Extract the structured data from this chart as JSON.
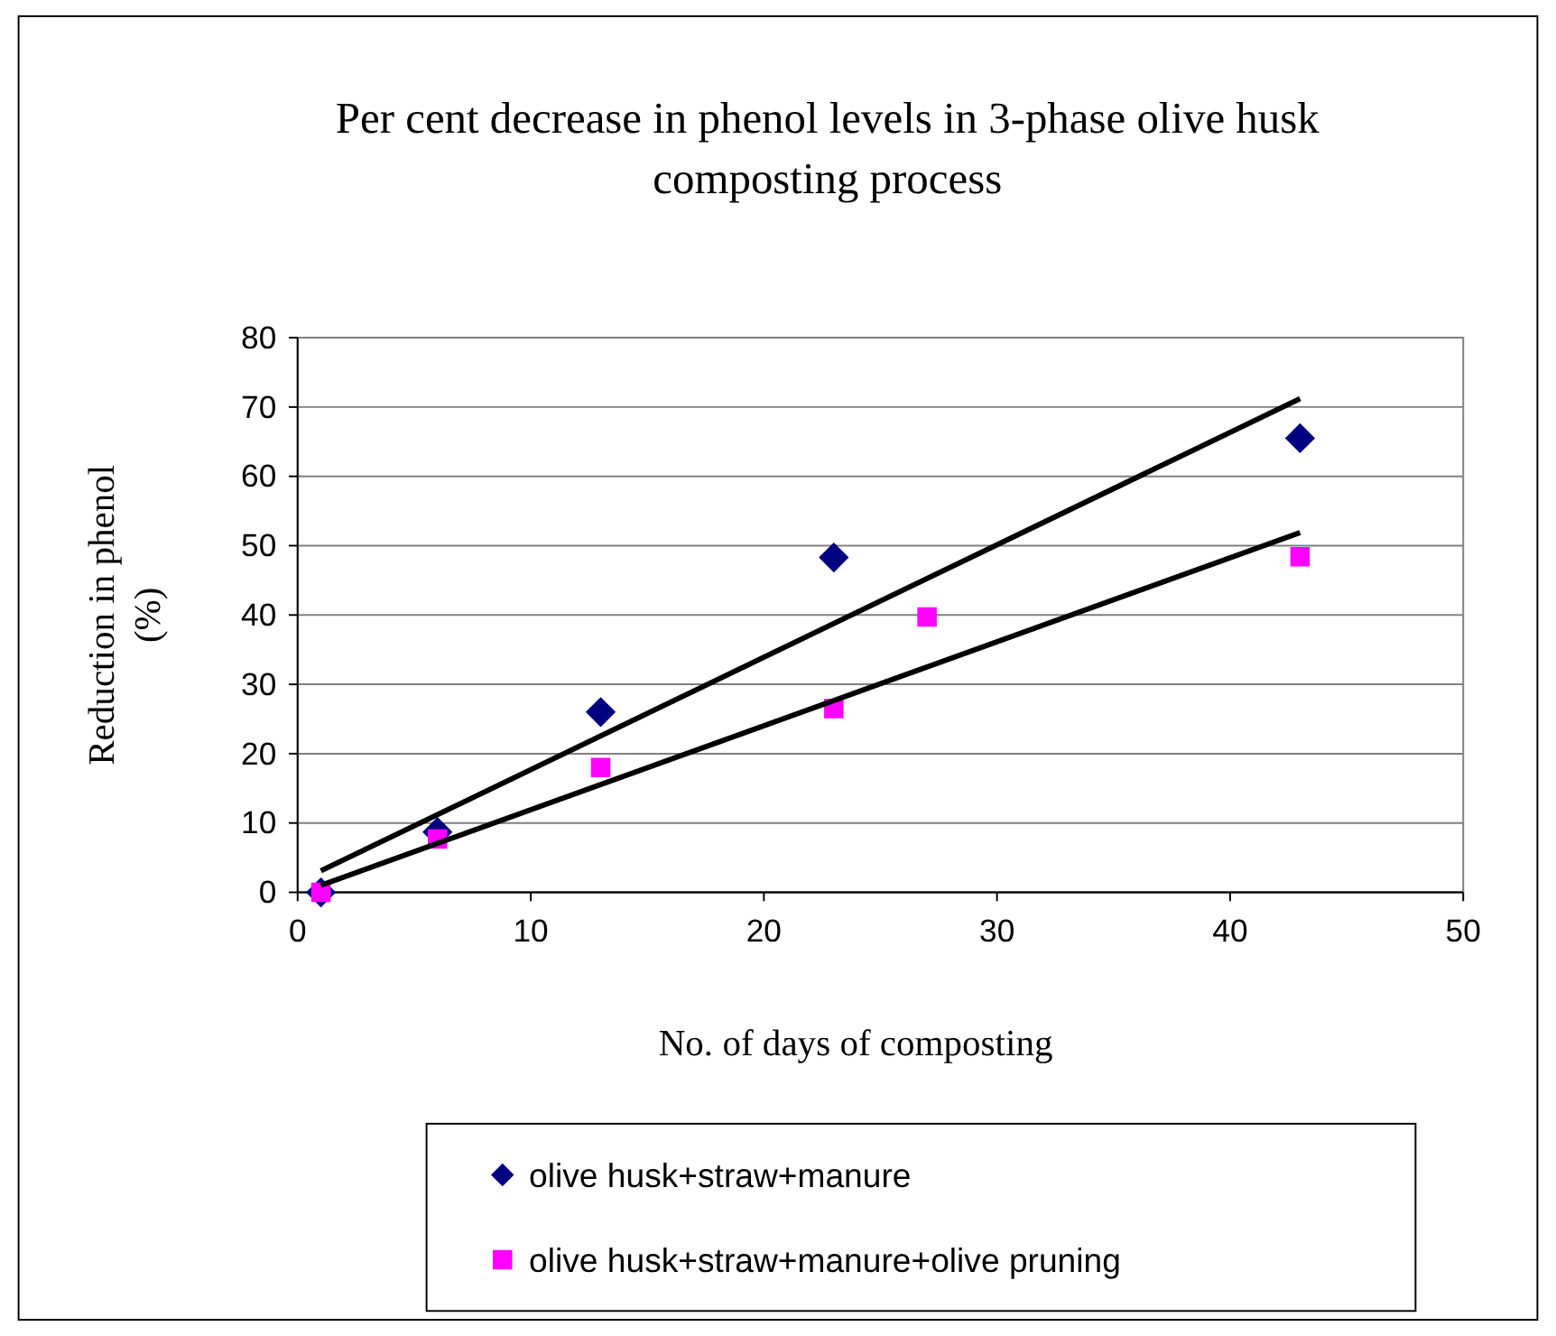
{
  "chart_data": {
    "type": "scatter",
    "title": "Per cent decrease in phenol levels in 3-phase olive husk composting process",
    "xlabel": "No. of days of composting",
    "ylabel": "Reduction in phenol (%)",
    "xlim": [
      0,
      50
    ],
    "xticks": [
      0,
      10,
      20,
      30,
      40,
      50
    ],
    "ylim": [
      0,
      80
    ],
    "yticks": [
      0,
      10,
      20,
      30,
      40,
      50,
      60,
      70,
      80
    ],
    "grid": "y",
    "legend": "bottom",
    "series": [
      {
        "name": "olive husk+straw+manure",
        "color": "#000080",
        "marker": "diamond",
        "x": [
          1,
          6,
          13,
          23,
          43
        ],
        "values": [
          0,
          8.7,
          26,
          48.3,
          65.5
        ]
      },
      {
        "name": "olive husk+straw+manure+olive pruning",
        "color": "#ff00ff",
        "marker": "square",
        "x": [
          1,
          6,
          13,
          23,
          27,
          43
        ],
        "values": [
          0,
          7.7,
          18,
          26.5,
          39.7,
          48.4
        ]
      },
      {
        "type": "line",
        "color": "#000000",
        "marker": "none",
        "x": [
          1,
          43
        ],
        "values": [
          3.1,
          71.2
        ]
      },
      {
        "type": "line",
        "color": "#000000",
        "marker": "none",
        "x": [
          1,
          43
        ],
        "values": [
          1,
          51.9
        ]
      }
    ]
  }
}
